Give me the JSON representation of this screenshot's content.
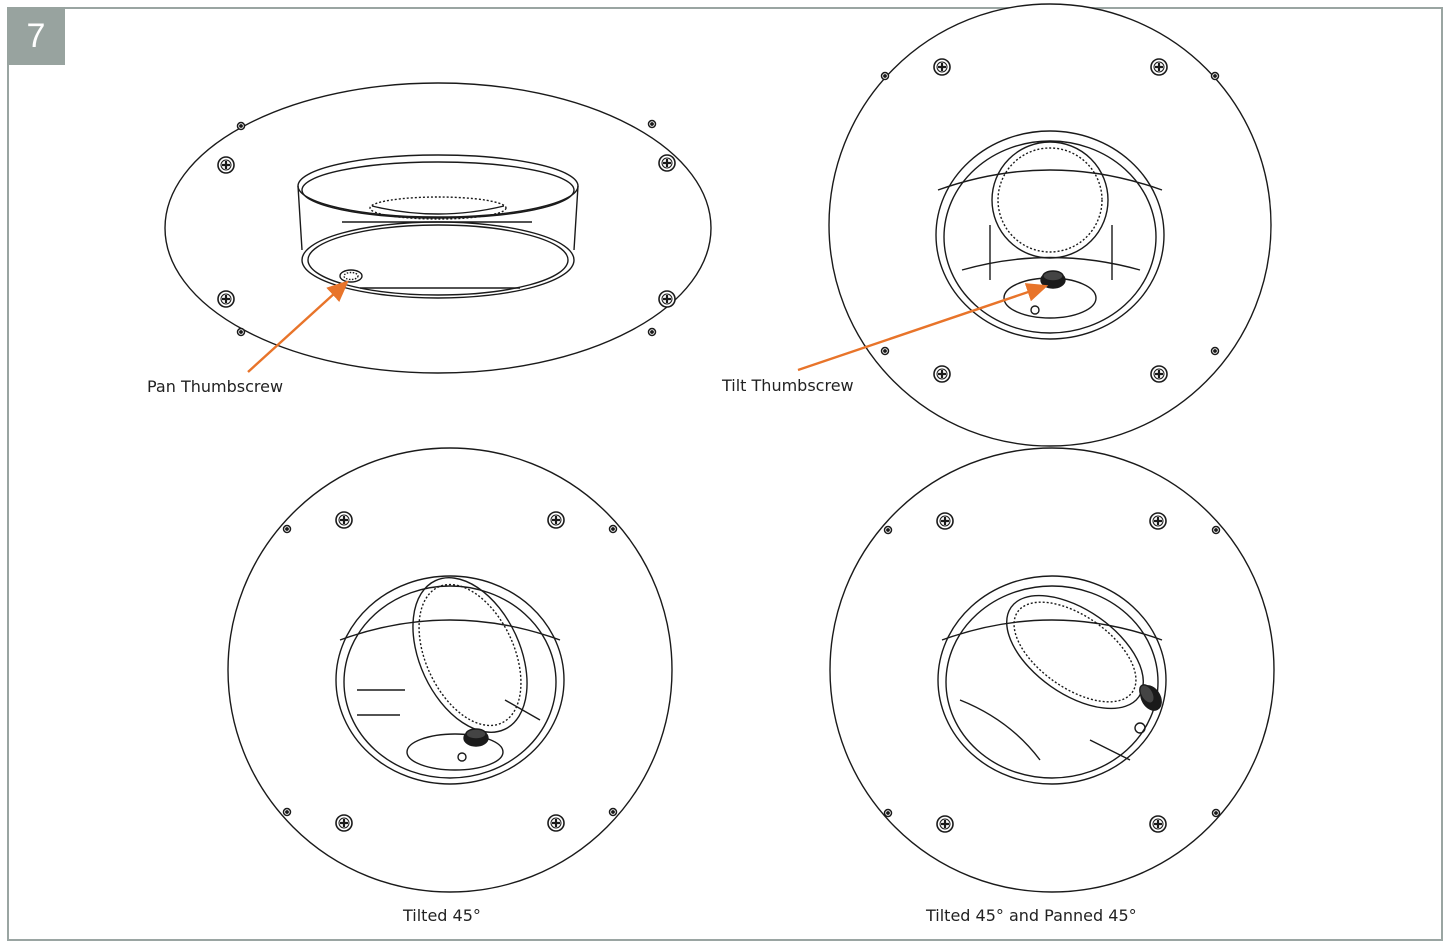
{
  "step_number": "7",
  "callouts": {
    "pan": "Pan Thumbscrew",
    "tilt": "Tilt Thumbscrew"
  },
  "captions": {
    "tilted": "Tilted 45°",
    "tilted_panned": "Tilted 45° and Panned 45°"
  },
  "colors": {
    "frame": "#9aa5a2",
    "badge": "#98a39f",
    "callout_arrow": "#e8742a",
    "line": "#1a1a1a"
  },
  "icons": [
    "phillips-screw-icon",
    "mounting-pin-icon",
    "thumbscrew-icon"
  ]
}
